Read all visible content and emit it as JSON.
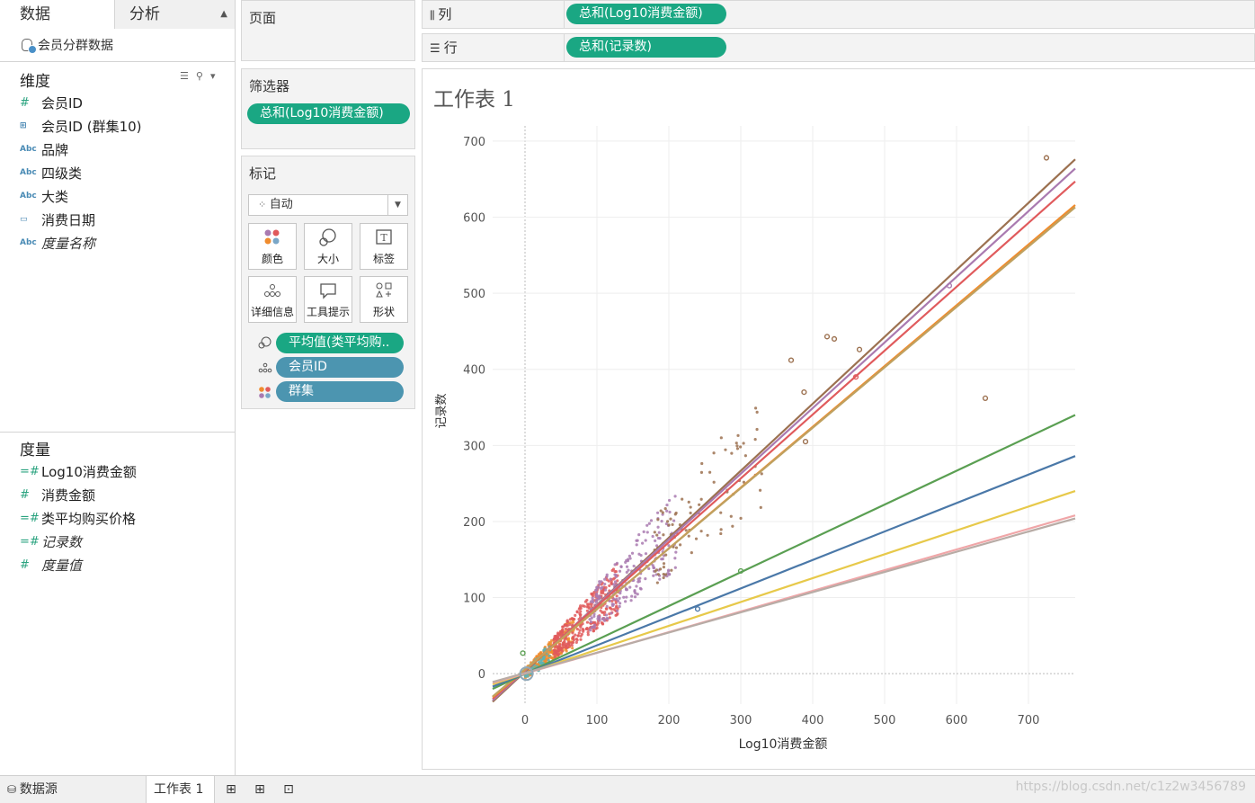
{
  "data_pane": {
    "tab_data": "数据",
    "tab_analysis": "分析",
    "datasource": "会员分群数据",
    "dimensions_title": "维度",
    "dimensions": [
      {
        "type": "#",
        "label": "会员ID"
      },
      {
        "type": "grp",
        "label": "会员ID (群集10)"
      },
      {
        "type": "Abc",
        "label": "品牌"
      },
      {
        "type": "Abc",
        "label": "四级类"
      },
      {
        "type": "Abc",
        "label": "大类"
      },
      {
        "type": "date",
        "label": "消费日期"
      },
      {
        "type": "Abc",
        "label": "度量名称"
      }
    ],
    "measures_title": "度量",
    "measures": [
      {
        "type": "=#",
        "label": "Log10消费金额"
      },
      {
        "type": "#",
        "label": "消费金额"
      },
      {
        "type": "=#",
        "label": "类平均购买价格"
      },
      {
        "type": "=#",
        "label": "记录数"
      },
      {
        "type": "#",
        "label": "度量值"
      }
    ]
  },
  "pages": {
    "title": "页面"
  },
  "filters": {
    "title": "筛选器",
    "pill": "总和(Log10消费金额)"
  },
  "marks": {
    "title": "标记",
    "type": "自动",
    "buttons": {
      "color": "颜色",
      "size": "大小",
      "label": "标签",
      "detail": "详细信息",
      "tooltip": "工具提示",
      "shape": "形状"
    },
    "encodings": [
      "平均值(类平均购..",
      "会员ID",
      "群集"
    ]
  },
  "shelves": {
    "columns_label": "列",
    "columns_pill": "总和(Log10消费金额)",
    "rows_label": "行",
    "rows_pill": "总和(记录数)"
  },
  "sheet": {
    "title": "工作表 1"
  },
  "chart_data": {
    "type": "scatter",
    "xlabel": "Log10消费金额",
    "ylabel": "记录数",
    "xlim": [
      -45,
      765
    ],
    "ylim": [
      -40,
      720
    ],
    "xticks": [
      0,
      100,
      200,
      300,
      400,
      500,
      600,
      700
    ],
    "yticks": [
      0,
      100,
      200,
      300,
      400,
      500,
      600,
      700
    ],
    "grid": true,
    "trend_lines": [
      {
        "color": "#9c7150",
        "x": [
          -45,
          765
        ],
        "y": [
          -37,
          676
        ]
      },
      {
        "color": "#a97ab0",
        "x": [
          -45,
          765
        ],
        "y": [
          -35,
          664
        ]
      },
      {
        "color": "#e05a5c",
        "x": [
          -45,
          765
        ],
        "y": [
          -33,
          647
        ]
      },
      {
        "color": "#f08c2e",
        "x": [
          -45,
          765
        ],
        "y": [
          -31,
          616
        ]
      },
      {
        "color": "#bfa160",
        "x": [
          -45,
          765
        ],
        "y": [
          -30,
          613
        ]
      },
      {
        "color": "#5a9f52",
        "x": [
          -45,
          765
        ],
        "y": [
          -20,
          340
        ]
      },
      {
        "color": "#4a78a8",
        "x": [
          -45,
          765
        ],
        "y": [
          -17,
          286
        ]
      },
      {
        "color": "#e7c94a",
        "x": [
          -45,
          765
        ],
        "y": [
          -14,
          240
        ]
      },
      {
        "color": "#f0a6a8",
        "x": [
          -45,
          765
        ],
        "y": [
          -12,
          208
        ]
      },
      {
        "color": "#b8aca6",
        "x": [
          -45,
          765
        ],
        "y": [
          -11,
          204
        ]
      }
    ],
    "cluster_outliers": [
      {
        "x": 725,
        "y": 678,
        "color": "#9c7150"
      },
      {
        "x": 640,
        "y": 362,
        "color": "#9c7150"
      },
      {
        "x": 590,
        "y": 510,
        "color": "#a97ab0"
      },
      {
        "x": 420,
        "y": 443,
        "color": "#9c7150"
      },
      {
        "x": 430,
        "y": 440,
        "color": "#9c7150"
      },
      {
        "x": 465,
        "y": 426,
        "color": "#9c7150"
      },
      {
        "x": 460,
        "y": 390,
        "color": "#e05a5c"
      },
      {
        "x": 370,
        "y": 412,
        "color": "#9c7150"
      },
      {
        "x": 388,
        "y": 370,
        "color": "#9c7150"
      },
      {
        "x": 390,
        "y": 305,
        "color": "#9c7150"
      },
      {
        "x": 240,
        "y": 85,
        "color": "#4a78a8"
      },
      {
        "x": 300,
        "y": 135,
        "color": "#5a9f52"
      },
      {
        "x": -3,
        "y": 27,
        "color": "#5a9f52"
      }
    ]
  },
  "bottom": {
    "datasource_tab": "数据源",
    "sheet_tab": "工作表 1",
    "watermark": "https://blog.csdn.net/c1z2w3456789"
  }
}
